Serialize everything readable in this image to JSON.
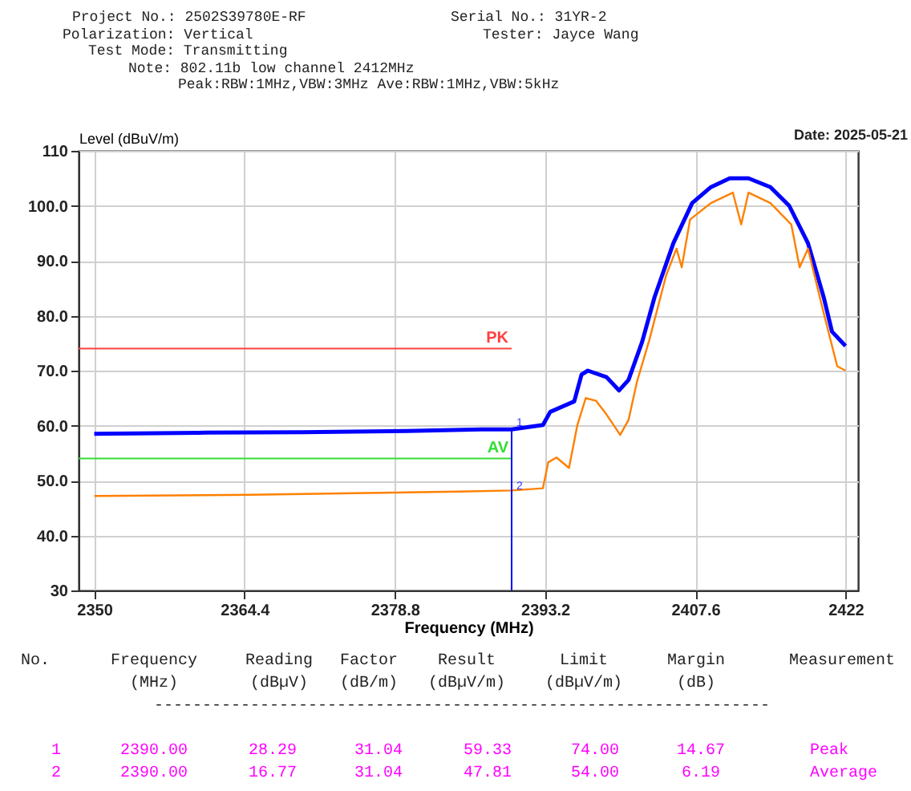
{
  "chart_data": {
    "type": "line",
    "xlabel": "Frequency (MHz)",
    "ylabel": "Level (dBuV/m)",
    "xlim": [
      2348.5,
      2423.2
    ],
    "xticks": [
      2350,
      2364.4,
      2378.8,
      2393.2,
      2407.6,
      2422
    ],
    "ylim": [
      30,
      110
    ],
    "yticks": [
      30,
      {
        "value": 40,
        "label": "40.0"
      },
      {
        "value": 50,
        "label": "50.0"
      },
      {
        "value": 60,
        "label": "60.0"
      },
      {
        "value": 70,
        "label": "70.0"
      },
      {
        "value": 80,
        "label": "80.0"
      },
      {
        "value": 90,
        "label": "90.0"
      },
      {
        "value": 100,
        "label": "100.0"
      },
      110
    ],
    "grid": true,
    "legend": false,
    "marker": "none",
    "line_style": "solid",
    "series": [
      {
        "color": "#0000ff",
        "x": [
          2350,
          2360,
          2370,
          2380,
          2387.1,
          2390,
          2393.0,
          2393.7,
          2396.0,
          2396.7,
          2397.3,
          2399.1,
          2400.3,
          2401.2,
          2402.5,
          2403.7,
          2405.5,
          2407.3,
          2409.1,
          2410.9,
          2412.7,
          2414.8,
          2416.6,
          2418.4,
          2419.9,
          2420.7,
          2422
        ],
        "values": [
          58.5,
          58.7,
          58.8,
          59.0,
          59.3,
          59.3,
          60.1,
          62.5,
          64.4,
          69.3,
          70.0,
          68.8,
          66.4,
          68.3,
          75.2,
          83.4,
          93.2,
          100.5,
          103.4,
          105.0,
          105.0,
          103.4,
          100.0,
          93.2,
          83.4,
          77.1,
          74.5
        ]
      },
      {
        "color": "#ff8000",
        "x": [
          2350,
          2365,
          2375,
          2385,
          2390,
          2393.0,
          2393.5,
          2394.3,
          2394.8,
          2395.5,
          2396.3,
          2397.1,
          2398.1,
          2399.1,
          2400.4,
          2401.2,
          2402.0,
          2403.2,
          2404.8,
          2405.8,
          2406.3,
          2407.1,
          2409.1,
          2411.2,
          2412.0,
          2412.7,
          2414.8,
          2416.8,
          2417.6,
          2418.4,
          2419.9,
          2421.2,
          2422
        ],
        "values": [
          47.2,
          47.4,
          47.7,
          48.0,
          48.2,
          48.6,
          53.3,
          54.2,
          53.4,
          52.3,
          60.1,
          65.0,
          64.5,
          62.0,
          58.3,
          61.0,
          67.9,
          75.6,
          87.3,
          92.2,
          88.8,
          97.5,
          100.5,
          102.4,
          96.6,
          102.4,
          100.5,
          96.6,
          88.8,
          92.2,
          80.5,
          70.8,
          70.0
        ]
      }
    ],
    "ref_lines": [
      {
        "axis": "y",
        "value": 74,
        "label": "PK",
        "color": "#ff4040"
      },
      {
        "axis": "y",
        "value": 54,
        "label": "AV",
        "color": "#33dd33"
      },
      {
        "axis": "x",
        "value": 2390,
        "label": null,
        "color": "#0000ff"
      }
    ],
    "annotations": [
      "Project No.: 2502S39780E-RF",
      "Serial No.: 31YR-2",
      "Polarization: Vertical",
      "Tester: Jayce Wang",
      "Test Mode: Transmitting",
      "Note: 802.11b low channel 2412MHz",
      "Peak:RBW:1MHz,VBW:3MHz Ave:RBW:1MHz,VBW:5kHz",
      "Date: 2025-05-21",
      "No.",
      "Frequency",
      "Reading",
      "Factor",
      "Result",
      "Limit",
      "Margin",
      "Measurement",
      "(MHz)",
      "(dBµV)",
      "(dB/m)",
      "(dBµV/m)",
      "(dBµV/m)",
      "(dB)",
      "----------------------------------------------------------------",
      "1",
      "2390.00",
      "28.29",
      "31.04",
      "59.33",
      "74.00",
      "14.67",
      "Peak",
      "2",
      "2390.00",
      "16.77",
      "31.04",
      "47.81",
      "54.00",
      "6.19",
      "Average",
      {
        "text": "1",
        "x": 2390,
        "y": 59.33
      },
      {
        "text": "2",
        "x": 2390,
        "y": 47.81
      }
    ]
  }
}
